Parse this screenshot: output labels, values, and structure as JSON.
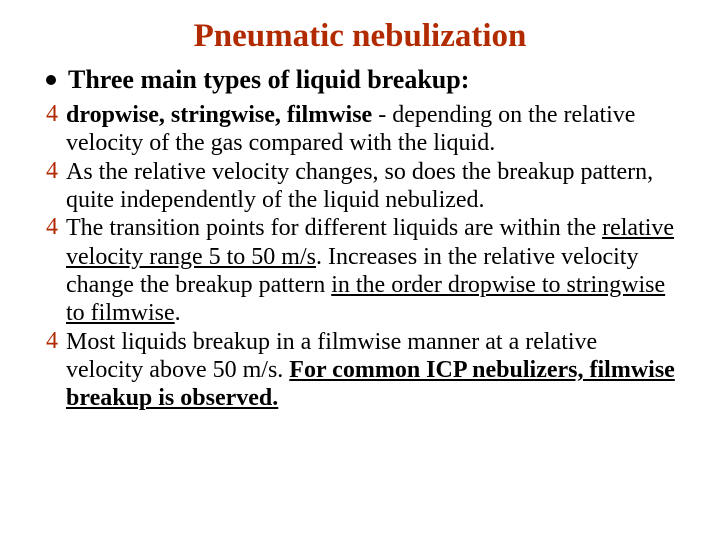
{
  "title": {
    "text": "Pneumatic nebulization",
    "color": "#b22a00",
    "fontsize": 33
  },
  "mainBullet": {
    "dot": {
      "color": "#000000",
      "size": 10
    },
    "text": "Three main types of liquid breakup:",
    "fontsize": 26,
    "color": "#000000"
  },
  "subList": {
    "marker": {
      "glyph": "4",
      "color": "#b22a00",
      "fontsize": 24
    },
    "fontsize": 24,
    "color": "#000000",
    "items": [
      {
        "segments": [
          {
            "text": "dropwise, stringwise, filmwise",
            "bold": true
          },
          {
            "text": " - depending on the relative velocity of the gas compared with the liquid."
          }
        ]
      },
      {
        "segments": [
          {
            "text": "As the relative velocity changes, so does the breakup pattern, quite independently of the liquid nebulized."
          }
        ]
      },
      {
        "segments": [
          {
            "text": "The transition points for different liquids are within the "
          },
          {
            "text": "relative velocity range 5 to 50 m/s",
            "underline": true
          },
          {
            "text": ". Increases in the relative velocity change the breakup pattern "
          },
          {
            "text": "in the order dropwise to stringwise to filmwise",
            "underline": true
          },
          {
            "text": "."
          }
        ]
      },
      {
        "segments": [
          {
            "text": "Most liquids breakup in a filmwise manner at a relative velocity above 50 m/s. "
          },
          {
            "text": "For common ICP nebulizers, filmwise breakup is observed.",
            "bold": true,
            "underline": true
          }
        ]
      }
    ]
  }
}
